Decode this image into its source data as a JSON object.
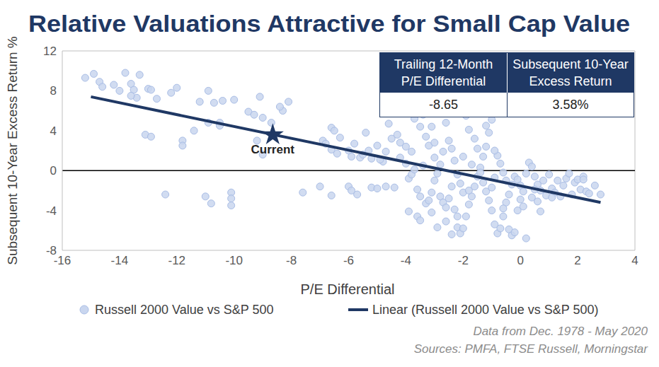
{
  "chart_data": {
    "type": "scatter",
    "title": "Relative Valuations Attractive for Small Cap Value",
    "x_label": "P/E Differential",
    "y_label": "Subsequent 10-Year Excess Return %",
    "xlim": [
      -16,
      4
    ],
    "xticks": [
      -16,
      -14,
      -12,
      -10,
      -8,
      -6,
      -4,
      -2,
      0,
      2,
      4
    ],
    "ylim": [
      -8,
      12
    ],
    "yticks": [
      -8,
      -4,
      0,
      4,
      8,
      12
    ],
    "grid": false,
    "hline": 0,
    "series": [
      {
        "name": "Russell 2000 Value vs S&P 500",
        "type": "scatter",
        "marker": "circle",
        "color": "#c9d6ef",
        "values": [
          [
            -15.2,
            9.3
          ],
          [
            -14.9,
            9.7
          ],
          [
            -14.7,
            8.9
          ],
          [
            -14.6,
            8.4
          ],
          [
            -14.2,
            8.6
          ],
          [
            -14.0,
            8.0
          ],
          [
            -13.8,
            9.8
          ],
          [
            -13.6,
            8.7
          ],
          [
            -13.5,
            8.1
          ],
          [
            -13.4,
            7.3
          ],
          [
            -13.3,
            9.6
          ],
          [
            -13.0,
            8.2
          ],
          [
            -12.9,
            8.1
          ],
          [
            -12.7,
            7.2
          ],
          [
            -13.1,
            3.6
          ],
          [
            -12.9,
            3.4
          ],
          [
            -13.6,
            7.5
          ],
          [
            -12.2,
            7.8
          ],
          [
            -12.0,
            8.3
          ],
          [
            -12.4,
            -2.4
          ],
          [
            -11.8,
            3.0
          ],
          [
            -11.8,
            2.5
          ],
          [
            -11.4,
            4.0
          ],
          [
            -11.2,
            6.9
          ],
          [
            -10.9,
            8.0
          ],
          [
            -10.7,
            6.8
          ],
          [
            -10.5,
            4.8
          ],
          [
            -10.4,
            7.0
          ],
          [
            -10.0,
            7.1
          ],
          [
            -10.9,
            4.8
          ],
          [
            -11.0,
            -2.6
          ],
          [
            -10.8,
            -3.3
          ],
          [
            -10.1,
            -2.2
          ],
          [
            -10.1,
            -2.8
          ],
          [
            -10.1,
            -3.5
          ],
          [
            -9.5,
            5.9
          ],
          [
            -9.3,
            5.6
          ],
          [
            -9.0,
            5.3
          ],
          [
            -9.1,
            7.4
          ],
          [
            -8.7,
            4.8
          ],
          [
            -8.3,
            6.0
          ],
          [
            -8.1,
            6.9
          ],
          [
            -8.4,
            6.4
          ],
          [
            -9.0,
            1.6
          ],
          [
            -9.2,
            3.0
          ],
          [
            -10.5,
            4.5
          ],
          [
            -7.6,
            -2.2
          ],
          [
            -7.0,
            -1.6
          ],
          [
            -6.9,
            3.0
          ],
          [
            -6.8,
            2.7
          ],
          [
            -6.6,
            4.3
          ],
          [
            -6.5,
            4.0
          ],
          [
            -6.6,
            2.1
          ],
          [
            -6.4,
            1.7
          ],
          [
            -6.3,
            3.3
          ],
          [
            -6.0,
            2.0
          ],
          [
            -5.9,
            1.4
          ],
          [
            -5.8,
            2.7
          ],
          [
            -5.6,
            1.3
          ],
          [
            -5.5,
            1.6
          ],
          [
            -5.4,
            3.8
          ],
          [
            -5.3,
            2.0
          ],
          [
            -5.2,
            1.2
          ],
          [
            -5.0,
            2.5
          ],
          [
            -4.8,
            0.9
          ],
          [
            -4.7,
            1.9
          ],
          [
            -4.6,
            4.7
          ],
          [
            -4.5,
            3.2
          ],
          [
            -4.3,
            3.6
          ],
          [
            -4.2,
            2.8
          ],
          [
            -4.0,
            2.4
          ],
          [
            -6.0,
            -1.6
          ],
          [
            -5.9,
            -2.0
          ],
          [
            -5.7,
            -2.4
          ],
          [
            -5.2,
            -1.7
          ],
          [
            -5.0,
            -1.8
          ],
          [
            -4.7,
            -1.6
          ],
          [
            -4.4,
            -1.7
          ],
          [
            -6.6,
            -2.5
          ],
          [
            -4.9,
            1.1
          ],
          [
            -4.2,
            1.3
          ],
          [
            -4.0,
            0.7
          ],
          [
            -3.9,
            -0.8
          ],
          [
            -3.8,
            -0.4
          ],
          [
            -3.7,
            5.2
          ],
          [
            -3.5,
            4.4
          ],
          [
            -3.4,
            5.6
          ],
          [
            -3.3,
            3.4
          ],
          [
            -3.2,
            2.5
          ],
          [
            -3.1,
            4.4
          ],
          [
            -3.0,
            2.8
          ],
          [
            -3.0,
            1.3
          ],
          [
            -3.7,
            0.1
          ],
          [
            -3.6,
            -1.9
          ],
          [
            -3.5,
            -2.6
          ],
          [
            -3.3,
            -3.3
          ],
          [
            -3.9,
            -4.1
          ],
          [
            -3.6,
            -4.6
          ],
          [
            -3.5,
            -5.0
          ],
          [
            -3.2,
            -3.0
          ],
          [
            -3.1,
            -2.2
          ],
          [
            -3.0,
            -1.0
          ],
          [
            -2.9,
            -0.3
          ],
          [
            -2.8,
            0.6
          ],
          [
            -2.7,
            1.9
          ],
          [
            -2.6,
            4.8
          ],
          [
            -2.5,
            3.0
          ],
          [
            -2.4,
            2.2
          ],
          [
            -2.3,
            1.0
          ],
          [
            -2.2,
            -0.4
          ],
          [
            -2.1,
            -1.3
          ],
          [
            -2.0,
            -2.2
          ],
          [
            -2.8,
            -2.6
          ],
          [
            -2.7,
            -3.2
          ],
          [
            -2.6,
            -3.7
          ],
          [
            -2.5,
            -2.8
          ],
          [
            -2.4,
            -1.6
          ],
          [
            -2.3,
            -3.9
          ],
          [
            -2.2,
            -5.7
          ],
          [
            -2.1,
            -6.3
          ],
          [
            -2.0,
            -5.8
          ],
          [
            -1.9,
            -4.6
          ],
          [
            -1.8,
            -3.4
          ],
          [
            -1.7,
            -2.6
          ],
          [
            -1.6,
            -1.6
          ],
          [
            -1.5,
            -0.6
          ],
          [
            -1.4,
            0.3
          ],
          [
            -1.3,
            1.4
          ],
          [
            -1.2,
            2.4
          ],
          [
            -1.1,
            3.8
          ],
          [
            -1.0,
            5.1
          ],
          [
            -1.9,
            5.5
          ],
          [
            -1.8,
            4.1
          ],
          [
            -1.6,
            3.2
          ],
          [
            -1.5,
            2.2
          ],
          [
            -1.4,
            -0.2
          ],
          [
            -1.3,
            -1.2
          ],
          [
            -1.2,
            -2.1
          ],
          [
            -1.1,
            -3.0
          ],
          [
            -1.0,
            -4.0
          ],
          [
            -0.9,
            -5.4
          ],
          [
            -0.8,
            -6.3
          ],
          [
            -0.7,
            -5.8
          ],
          [
            -0.6,
            -4.6
          ],
          [
            -0.5,
            -3.2
          ],
          [
            -0.4,
            -2.4
          ],
          [
            -0.3,
            -1.4
          ],
          [
            -0.2,
            -0.6
          ],
          [
            -0.1,
            -0.9
          ],
          [
            0.0,
            -1.5
          ],
          [
            0.1,
            -2.1
          ],
          [
            0.2,
            -0.3
          ],
          [
            0.3,
            0.8
          ],
          [
            0.4,
            0.4
          ],
          [
            -0.8,
            1.5
          ],
          [
            -0.7,
            0.7
          ],
          [
            -0.6,
            -0.2
          ],
          [
            -0.5,
            -1.0
          ],
          [
            -0.4,
            -5.9
          ],
          [
            -0.3,
            -6.5
          ],
          [
            -0.2,
            -6.2
          ],
          [
            -0.1,
            -4.0
          ],
          [
            0.0,
            -2.9
          ],
          [
            0.1,
            -3.6
          ],
          [
            0.2,
            -6.8
          ],
          [
            -1.0,
            -1.7
          ],
          [
            -0.9,
            -0.7
          ],
          [
            -2.9,
            -5.7
          ],
          [
            -2.6,
            -5.1
          ],
          [
            -2.4,
            -6.4
          ],
          [
            -3.8,
            1.9
          ],
          [
            -3.4,
            0.5
          ],
          [
            -2.0,
            1.4
          ],
          [
            -1.7,
            0.6
          ],
          [
            -0.9,
            2.0
          ],
          [
            -1.2,
            4.5
          ],
          [
            -1.8,
            -2.0
          ],
          [
            -2.2,
            -4.6
          ],
          [
            -3.1,
            -4.2
          ],
          [
            -0.6,
            -3.8
          ],
          [
            0.5,
            -0.6
          ],
          [
            0.6,
            -1.4
          ],
          [
            0.7,
            -2.0
          ],
          [
            0.8,
            -1.0
          ],
          [
            0.9,
            -2.5
          ],
          [
            1.0,
            -0.4
          ],
          [
            1.1,
            -1.8
          ],
          [
            1.2,
            -2.2
          ],
          [
            1.3,
            -1.0
          ],
          [
            1.4,
            -2.6
          ],
          [
            1.5,
            -1.5
          ],
          [
            1.6,
            -0.8
          ],
          [
            1.7,
            -0.3
          ],
          [
            1.8,
            -2.4
          ],
          [
            1.9,
            -1.2
          ],
          [
            2.0,
            -0.9
          ],
          [
            2.1,
            -1.9
          ],
          [
            2.2,
            -0.6
          ],
          [
            2.3,
            -2.1
          ],
          [
            2.4,
            -2.3
          ],
          [
            2.6,
            -1.5
          ],
          [
            2.8,
            -2.4
          ],
          [
            1.1,
            -2.7
          ],
          [
            0.6,
            -3.1
          ],
          [
            0.7,
            -4.1
          ],
          [
            0.4,
            -2.7
          ],
          [
            0.5,
            -1.9
          ],
          [
            2.2,
            -0.9
          ]
        ]
      },
      {
        "name": "Linear (Russell 2000 Value vs S&P 500)",
        "type": "line",
        "line_style": "solid",
        "color": "#1f3864",
        "values": [
          [
            -15.0,
            7.4
          ],
          [
            2.8,
            -3.2
          ]
        ]
      }
    ],
    "current": {
      "label": "Current",
      "x": -8.65,
      "y": 3.58,
      "marker": "star",
      "color": "#1f3864"
    },
    "table": {
      "columns": [
        "Trailing 12-Month P/E Differential",
        "Subsequent 10-Year Excess Return"
      ],
      "cells": [
        "-8.65",
        "3.58%"
      ]
    },
    "footnotes": [
      "Data from Dec. 1978 - May 2020",
      "Sources: PMFA, FTSE Russell, Morningstar"
    ]
  }
}
